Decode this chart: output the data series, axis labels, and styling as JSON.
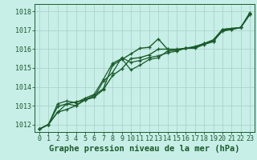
{
  "background_color": "#c8eee8",
  "grid_color": "#aad4c8",
  "line_color_dark": "#1a5c2a",
  "line_color_mid": "#2d7a3a",
  "xlabel": "Graphe pression niveau de la mer (hPa)",
  "xlabel_fontsize": 7.5,
  "tick_fontsize": 6.0,
  "ytick_labels": [
    1012,
    1013,
    1014,
    1015,
    1016,
    1017,
    1018
  ],
  "ylim": [
    1011.6,
    1018.4
  ],
  "xlim": [
    -0.5,
    23.5
  ],
  "xtick_labels": [
    "0",
    "1",
    "2",
    "3",
    "4",
    "5",
    "6",
    "7",
    "8",
    "9",
    "10",
    "11",
    "12",
    "13",
    "14",
    "15",
    "16",
    "17",
    "18",
    "19",
    "20",
    "21",
    "22",
    "23"
  ],
  "series": [
    [
      1011.75,
      1012.0,
      1012.65,
      1012.8,
      1013.0,
      1013.3,
      1013.55,
      1013.9,
      1015.15,
      1015.45,
      1015.75,
      1016.05,
      1016.1,
      1016.55,
      1016.0,
      1016.0,
      1016.05,
      1016.1,
      1016.3,
      1016.4,
      1017.05,
      1017.1,
      1017.15,
      1017.85
    ],
    [
      1011.75,
      1012.0,
      1013.1,
      1013.25,
      1013.15,
      1013.4,
      1013.6,
      1014.4,
      1015.25,
      1015.5,
      1014.9,
      1015.15,
      1015.45,
      1015.55,
      1015.9,
      1015.95,
      1016.05,
      1016.1,
      1016.3,
      1016.5,
      1017.05,
      1017.1,
      1017.15,
      1017.95
    ],
    [
      1011.75,
      1012.0,
      1012.65,
      1013.1,
      1013.0,
      1013.35,
      1013.45,
      1014.3,
      1014.75,
      1015.55,
      1015.3,
      1015.4,
      1015.55,
      1015.65,
      1015.8,
      1015.9,
      1016.05,
      1016.15,
      1016.3,
      1016.45,
      1016.95,
      1017.05,
      1017.15,
      1017.9
    ],
    [
      1011.75,
      1012.0,
      1012.95,
      1013.1,
      1013.2,
      1013.3,
      1013.45,
      1013.85,
      1014.6,
      1014.95,
      1015.5,
      1015.55,
      1015.7,
      1016.0,
      1016.0,
      1015.95,
      1016.05,
      1016.05,
      1016.25,
      1016.4,
      1017.0,
      1017.05,
      1017.15,
      1017.85
    ]
  ]
}
